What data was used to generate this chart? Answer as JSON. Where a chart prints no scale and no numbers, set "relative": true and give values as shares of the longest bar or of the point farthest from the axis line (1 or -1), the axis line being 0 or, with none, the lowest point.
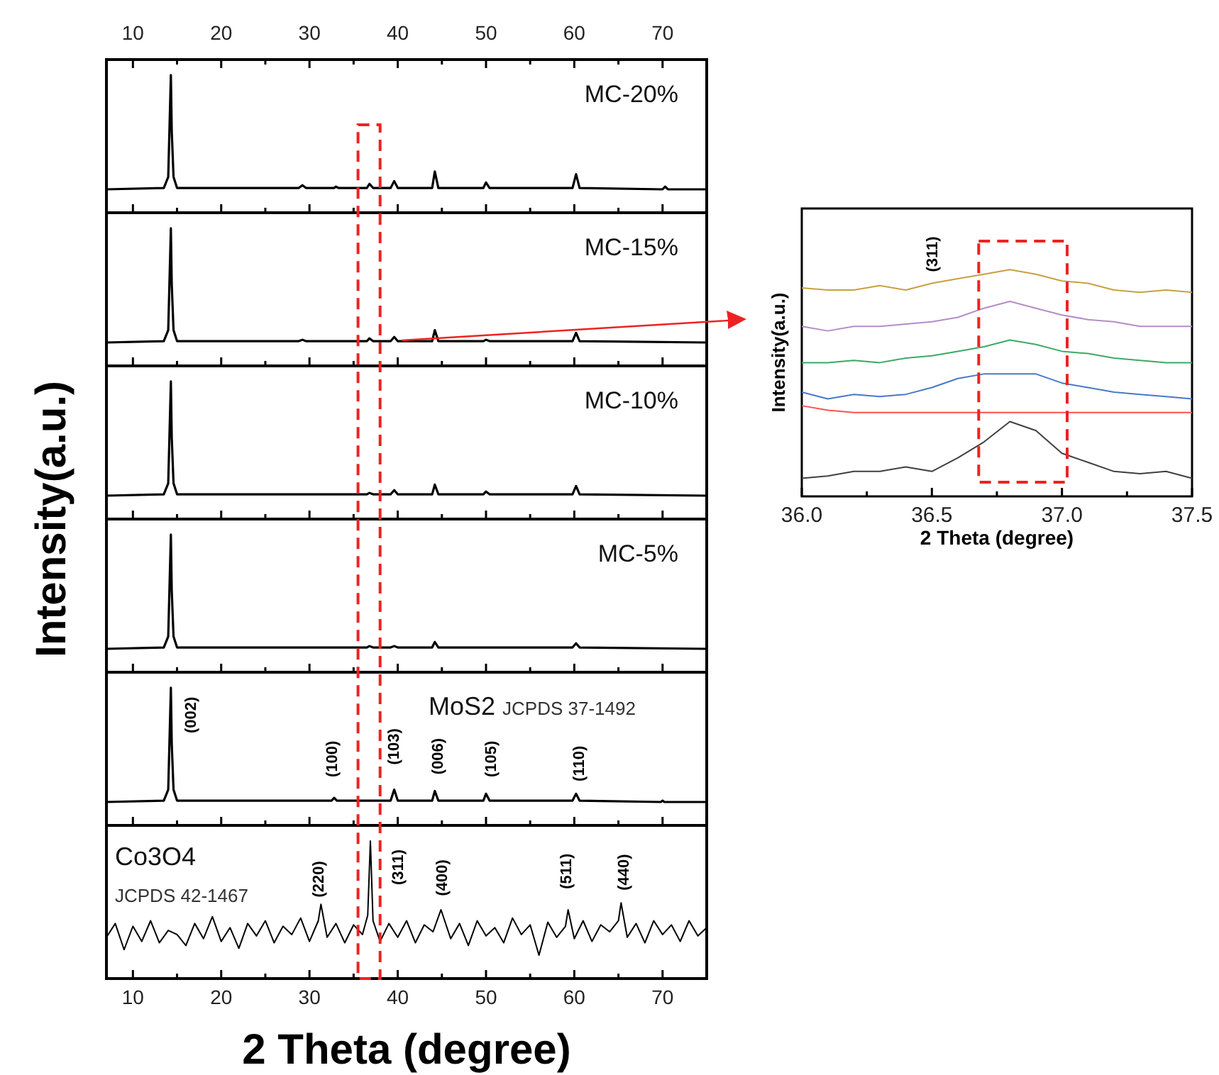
{
  "chart_data": [
    {
      "type": "line",
      "relative": true,
      "ylabel": "Intensity(a.u.)",
      "xlim": [
        7,
        75
      ],
      "xticks": [
        10,
        {
          "value": 15,
          "label": null
        },
        20,
        {
          "value": 25,
          "label": null
        },
        30,
        {
          "value": 35,
          "label": null
        },
        40,
        {
          "value": 45,
          "label": null
        },
        50,
        {
          "value": 55,
          "label": null
        },
        60,
        {
          "value": 65,
          "label": null
        },
        70
      ],
      "tick_labels": "x",
      "annotations": [
        "MC-20%"
      ],
      "x": [
        7,
        13.5,
        14,
        14.3,
        14.4,
        14.6,
        15,
        20,
        28.8,
        29.2,
        29.6,
        32.8,
        33,
        33.3,
        36.5,
        36.8,
        37.2,
        39.2,
        39.6,
        40,
        43.9,
        44.2,
        44.6,
        49.7,
        50,
        50.4,
        59.8,
        60.2,
        60.6,
        70,
        70.3,
        70.6,
        75
      ],
      "color": "#000000",
      "values": [
        0.17,
        0.18,
        0.26,
        1,
        0.59,
        0.26,
        0.18,
        0.18,
        0.18,
        0.2,
        0.18,
        0.18,
        0.19,
        0.18,
        0.18,
        0.21,
        0.18,
        0.18,
        0.23,
        0.18,
        0.18,
        0.3,
        0.18,
        0.18,
        0.22,
        0.18,
        0.18,
        0.28,
        0.18,
        0.17,
        0.19,
        0.17,
        0.17
      ]
    },
    {
      "type": "line",
      "relative": true,
      "xlim": [
        7,
        75
      ],
      "xticks": [
        10,
        {
          "value": 15,
          "label": null
        },
        20,
        {
          "value": 25,
          "label": null
        },
        30,
        {
          "value": 35,
          "label": null
        },
        40,
        {
          "value": 45,
          "label": null
        },
        50,
        {
          "value": 55,
          "label": null
        },
        60,
        {
          "value": 65,
          "label": null
        },
        70
      ],
      "tick_labels": false,
      "annotations": [
        "MC-15%"
      ],
      "x": [
        7,
        13.5,
        14,
        14.3,
        14.4,
        14.6,
        15,
        20,
        28.8,
        29.2,
        29.6,
        36.5,
        36.8,
        37.2,
        39.2,
        39.6,
        40,
        43.9,
        44.2,
        44.6,
        49.7,
        50,
        50.4,
        59.8,
        60.2,
        60.6,
        75
      ],
      "color": "#000000",
      "values": [
        0.17,
        0.18,
        0.26,
        1,
        0.59,
        0.26,
        0.18,
        0.18,
        0.18,
        0.19,
        0.18,
        0.18,
        0.2,
        0.18,
        0.18,
        0.21,
        0.18,
        0.18,
        0.26,
        0.18,
        0.18,
        0.19,
        0.18,
        0.18,
        0.24,
        0.18,
        0.17
      ]
    },
    {
      "type": "line",
      "relative": true,
      "xlim": [
        7,
        75
      ],
      "xticks": [
        10,
        {
          "value": 15,
          "label": null
        },
        20,
        {
          "value": 25,
          "label": null
        },
        30,
        {
          "value": 35,
          "label": null
        },
        40,
        {
          "value": 45,
          "label": null
        },
        50,
        {
          "value": 55,
          "label": null
        },
        60,
        {
          "value": 65,
          "label": null
        },
        70
      ],
      "tick_labels": false,
      "annotations": [
        "MC-10%"
      ],
      "x": [
        7,
        13.5,
        14,
        14.3,
        14.4,
        14.6,
        15,
        20,
        36.5,
        36.8,
        37.2,
        39.2,
        39.6,
        40,
        43.9,
        44.2,
        44.6,
        49.7,
        50,
        50.4,
        59.8,
        60.2,
        60.6,
        75
      ],
      "color": "#000000",
      "values": [
        0.17,
        0.18,
        0.26,
        1,
        0.59,
        0.26,
        0.18,
        0.18,
        0.18,
        0.19,
        0.18,
        0.18,
        0.21,
        0.18,
        0.18,
        0.25,
        0.18,
        0.18,
        0.2,
        0.18,
        0.18,
        0.24,
        0.18,
        0.17
      ]
    },
    {
      "type": "line",
      "relative": true,
      "xlim": [
        7,
        75
      ],
      "xticks": [
        10,
        {
          "value": 15,
          "label": null
        },
        20,
        {
          "value": 25,
          "label": null
        },
        30,
        {
          "value": 35,
          "label": null
        },
        40,
        {
          "value": 45,
          "label": null
        },
        50,
        {
          "value": 55,
          "label": null
        },
        60,
        {
          "value": 65,
          "label": null
        },
        70
      ],
      "tick_labels": false,
      "annotations": [
        "MC-5%"
      ],
      "x": [
        7,
        13.5,
        14,
        14.3,
        14.4,
        14.6,
        15,
        20,
        36.5,
        36.8,
        37.2,
        39.2,
        39.6,
        40,
        43.9,
        44.2,
        44.6,
        49.7,
        50,
        50.4,
        59.8,
        60.2,
        60.6,
        75
      ],
      "color": "#000000",
      "values": [
        0.17,
        0.18,
        0.26,
        1,
        0.59,
        0.26,
        0.18,
        0.18,
        0.18,
        0.19,
        0.18,
        0.18,
        0.19,
        0.18,
        0.18,
        0.22,
        0.18,
        0.18,
        0.18,
        0.18,
        0.18,
        0.21,
        0.18,
        0.17
      ]
    },
    {
      "type": "line",
      "relative": true,
      "xlim": [
        7,
        75
      ],
      "xticks": [
        10,
        {
          "value": 15,
          "label": null
        },
        20,
        {
          "value": 25,
          "label": null
        },
        30,
        {
          "value": 35,
          "label": null
        },
        40,
        {
          "value": 45,
          "label": null
        },
        50,
        {
          "value": 55,
          "label": null
        },
        60,
        {
          "value": 65,
          "label": null
        },
        70
      ],
      "tick_labels": false,
      "annotations": [
        "MoS2",
        "JCPDS 37-1492",
        "(002)",
        "(100)",
        "(103)",
        "(006)",
        "(105)",
        "(110)"
      ],
      "x": [
        7,
        13.5,
        14,
        14.3,
        14.4,
        14.6,
        15,
        20,
        32.5,
        32.8,
        33.1,
        39.2,
        39.6,
        40,
        43.9,
        44.2,
        44.6,
        49.7,
        50,
        50.4,
        59.8,
        60.2,
        60.6,
        69.8,
        70,
        70.2,
        75
      ],
      "color": "#000000",
      "values": [
        0.17,
        0.18,
        0.26,
        1,
        0.59,
        0.26,
        0.18,
        0.18,
        0.18,
        0.2,
        0.18,
        0.18,
        0.26,
        0.18,
        0.18,
        0.25,
        0.18,
        0.18,
        0.23,
        0.18,
        0.18,
        0.23,
        0.18,
        0.17,
        0.18,
        0.17,
        0.17
      ]
    },
    {
      "type": "line",
      "relative": true,
      "xlabel": "2 Theta (degree)",
      "xlim": [
        7,
        75
      ],
      "xticks": [
        10,
        {
          "value": 15,
          "label": null
        },
        20,
        {
          "value": 25,
          "label": null
        },
        30,
        {
          "value": 35,
          "label": null
        },
        40,
        {
          "value": 45,
          "label": null
        },
        50,
        {
          "value": 55,
          "label": null
        },
        60,
        {
          "value": 65,
          "label": null
        },
        70
      ],
      "tick_labels": "x",
      "annotations": [
        "Co3O4",
        "JCPDS 42-1467",
        "(220)",
        "(311)",
        "(400)",
        "(511)",
        "(440)"
      ],
      "x": [
        7,
        8,
        9,
        10,
        11,
        12,
        13,
        14,
        15,
        16,
        17,
        18,
        19,
        20,
        21,
        22,
        23,
        24,
        25,
        26,
        27,
        28,
        29,
        30,
        31,
        31.3,
        32,
        33,
        34,
        35,
        36,
        36.6,
        36.9,
        37.2,
        38,
        39,
        40,
        41,
        42,
        43,
        44,
        44.9,
        46,
        47,
        48,
        49,
        50,
        51,
        52,
        53,
        54,
        55,
        56,
        57,
        58,
        59,
        59.3,
        60,
        61,
        62,
        63,
        64,
        65,
        65.3,
        66,
        67,
        68,
        69,
        70,
        71,
        72,
        73,
        74,
        75
      ],
      "color": "#000000",
      "values": [
        0.3,
        0.4,
        0.21,
        0.38,
        0.27,
        0.42,
        0.26,
        0.35,
        0.32,
        0.24,
        0.4,
        0.29,
        0.45,
        0.27,
        0.37,
        0.22,
        0.4,
        0.31,
        0.42,
        0.26,
        0.38,
        0.32,
        0.44,
        0.27,
        0.42,
        0.54,
        0.3,
        0.4,
        0.26,
        0.39,
        0.32,
        0.46,
        1,
        0.42,
        0.27,
        0.4,
        0.3,
        0.42,
        0.26,
        0.39,
        0.34,
        0.5,
        0.29,
        0.4,
        0.24,
        0.42,
        0.31,
        0.37,
        0.26,
        0.44,
        0.32,
        0.39,
        0.17,
        0.41,
        0.3,
        0.38,
        0.5,
        0.29,
        0.42,
        0.27,
        0.39,
        0.34,
        0.42,
        0.55,
        0.3,
        0.4,
        0.26,
        0.42,
        0.32,
        0.39,
        0.27,
        0.42,
        0.31,
        0.37
      ]
    },
    {
      "type": "line",
      "relative": true,
      "xlabel": "2 Theta (degree)",
      "ylabel": "Intensity(a.u.)",
      "xlim": [
        36,
        37.5
      ],
      "xticks": [
        {
          "value": 36,
          "label": "36.0"
        },
        {
          "value": 36.25,
          "label": null
        },
        36.5,
        {
          "value": 36.75,
          "label": null
        },
        {
          "value": 37,
          "label": "37.0"
        },
        {
          "value": 37.25,
          "label": null
        },
        37.5
      ],
      "annotations": [
        "(311)"
      ],
      "x": [
        36,
        36.1,
        36.2,
        36.3,
        36.4,
        36.5,
        36.6,
        36.7,
        36.8,
        36.9,
        37,
        37.1,
        37.2,
        37.3,
        37.4,
        37.5
      ],
      "series": [
        {
          "color": "#c8a040",
          "values": [
            0.92,
            0.91,
            0.91,
            0.93,
            0.91,
            0.94,
            0.96,
            0.98,
            1,
            0.98,
            0.95,
            0.94,
            0.91,
            0.9,
            0.91,
            0.9
          ]
        },
        {
          "color": "#b48cc8",
          "values": [
            0.75,
            0.73,
            0.75,
            0.75,
            0.76,
            0.77,
            0.79,
            0.83,
            0.86,
            0.83,
            0.8,
            0.78,
            0.77,
            0.75,
            0.75,
            0.75
          ]
        },
        {
          "color": "#3caa64",
          "values": [
            0.59,
            0.59,
            0.6,
            0.59,
            0.61,
            0.62,
            0.64,
            0.66,
            0.69,
            0.67,
            0.64,
            0.63,
            0.61,
            0.6,
            0.59,
            0.59
          ]
        },
        {
          "color": "#4878c8",
          "values": [
            0.46,
            0.43,
            0.45,
            0.44,
            0.45,
            0.48,
            0.52,
            0.54,
            0.54,
            0.54,
            0.5,
            0.48,
            0.46,
            0.45,
            0.44,
            0.43
          ]
        },
        {
          "color": "#ff5050",
          "values": [
            0.4,
            0.38,
            0.37,
            0.37,
            0.37,
            0.37,
            0.37,
            0.37,
            0.37,
            0.37,
            0.37,
            0.37,
            0.37,
            0.37,
            0.37,
            0.37
          ]
        },
        {
          "color": "#404040",
          "values": [
            0.08,
            0.09,
            0.11,
            0.11,
            0.13,
            0.11,
            0.17,
            0.24,
            0.33,
            0.29,
            0.19,
            0.15,
            0.11,
            0.1,
            0.11,
            0.08
          ]
        }
      ]
    }
  ]
}
